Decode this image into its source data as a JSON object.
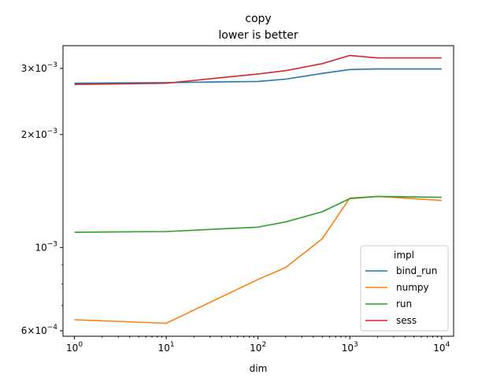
{
  "chart_data": {
    "type": "line",
    "title": "copy",
    "subtitle": "lower is better",
    "xlabel": "dim",
    "ylabel": "",
    "xscale": "log",
    "yscale": "log",
    "xlim": [
      0.75,
      13500
    ],
    "ylim": [
      0.00058,
      0.00345
    ],
    "x_ticks": [
      {
        "value": 1,
        "base": "10",
        "exp": "0"
      },
      {
        "value": 10,
        "base": "10",
        "exp": "1"
      },
      {
        "value": 100,
        "base": "10",
        "exp": "2"
      },
      {
        "value": 1000,
        "base": "10",
        "exp": "3"
      },
      {
        "value": 10000,
        "base": "10",
        "exp": "4"
      }
    ],
    "y_ticks": [
      {
        "value": 0.0006,
        "mant": "6",
        "base": "10",
        "exp": "−4"
      },
      {
        "value": 0.001,
        "mant": "",
        "base": "10",
        "exp": "−3"
      },
      {
        "value": 0.002,
        "mant": "2",
        "base": "10",
        "exp": "−3"
      },
      {
        "value": 0.003,
        "mant": "3",
        "base": "10",
        "exp": "−3"
      }
    ],
    "legend_title": "impl",
    "legend_position": "lower right",
    "grid": false,
    "x": [
      1,
      10,
      100,
      200,
      500,
      1000,
      2000,
      10000
    ],
    "series": [
      {
        "name": "bind_run",
        "color": "#1f77b4",
        "values": [
          0.00274,
          0.00275,
          0.00277,
          0.00281,
          0.00291,
          0.00298,
          0.00299,
          0.00299
        ]
      },
      {
        "name": "numpy",
        "color": "#ff7f0e",
        "values": [
          0.000642,
          0.000628,
          0.000822,
          0.000885,
          0.001055,
          0.001355,
          0.001368,
          0.001335
        ]
      },
      {
        "name": "run",
        "color": "#2ca02c",
        "values": [
          0.001098,
          0.001103,
          0.001133,
          0.00117,
          0.001245,
          0.00135,
          0.001368,
          0.00136
        ]
      },
      {
        "name": "sess",
        "color": "#d62728",
        "values": [
          0.00272,
          0.00274,
          0.0029,
          0.00296,
          0.00309,
          0.00325,
          0.0032,
          0.0032
        ]
      }
    ]
  }
}
